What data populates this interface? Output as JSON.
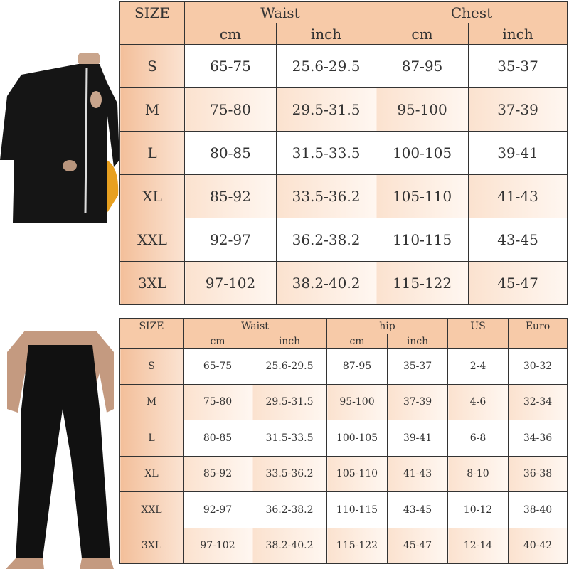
{
  "top_chart": {
    "size_label": "SIZE",
    "groups": [
      "Waist",
      "Chest"
    ],
    "units": [
      "cm",
      "inch",
      "cm",
      "inch"
    ],
    "rows": [
      [
        "S",
        "65-75",
        "25.6-29.5",
        "87-95",
        "35-37"
      ],
      [
        "M",
        "75-80",
        "29.5-31.5",
        "95-100",
        "37-39"
      ],
      [
        "L",
        "80-85",
        "31.5-33.5",
        "100-105",
        "39-41"
      ],
      [
        "XL",
        "85-92",
        "33.5-36.2",
        "105-110",
        "41-43"
      ],
      [
        "XXL",
        "92-97",
        "36.2-38.2",
        "110-115",
        "43-45"
      ],
      [
        "3XL",
        "97-102",
        "38.2-40.2",
        "115-122",
        "45-47"
      ]
    ]
  },
  "bottom_chart": {
    "size_label": "SIZE",
    "groups": [
      "Waist",
      "hip",
      "US",
      "Euro"
    ],
    "units": [
      "cm",
      "inch",
      "cm",
      "inch"
    ],
    "rows": [
      [
        "S",
        "65-75",
        "25.6-29.5",
        "87-95",
        "35-37",
        "2-4",
        "30-32"
      ],
      [
        "M",
        "75-80",
        "29.5-31.5",
        "95-100",
        "37-39",
        "4-6",
        "32-34"
      ],
      [
        "L",
        "80-85",
        "31.5-33.5",
        "100-105",
        "39-41",
        "6-8",
        "34-36"
      ],
      [
        "XL",
        "85-92",
        "33.5-36.2",
        "105-110",
        "41-43",
        "8-10",
        "36-38"
      ],
      [
        "XXL",
        "92-97",
        "36.2-38.2",
        "110-115",
        "43-45",
        "10-12",
        "38-40"
      ],
      [
        "3XL",
        "97-102",
        "38.2-40.2",
        "115-122",
        "45-47",
        "12-14",
        "40-42"
      ]
    ]
  },
  "colors": {
    "header": "#f7caa8",
    "row_tint": "#fbe2cf",
    "border": "#333333"
  }
}
